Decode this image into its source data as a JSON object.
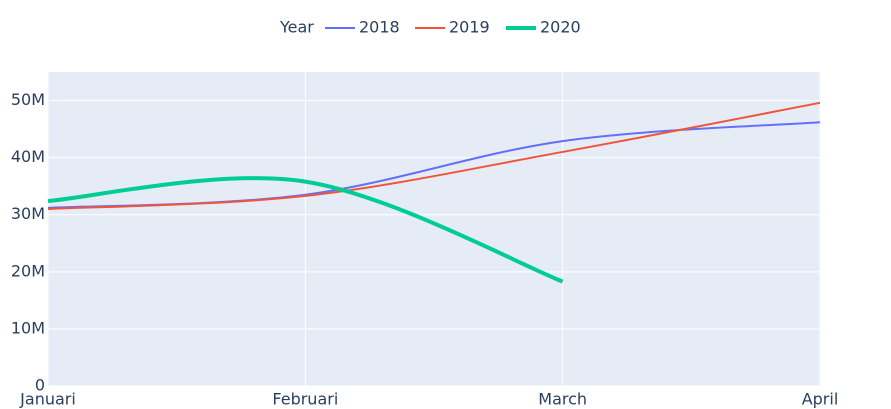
{
  "chart_data": {
    "type": "line",
    "legend_title": "Year",
    "categories": [
      "Januari",
      "Februari",
      "March",
      "April"
    ],
    "series": [
      {
        "name": "2018",
        "color": "#636efa",
        "width": 2,
        "values": [
          31200000,
          33500000,
          42900000,
          46200000
        ]
      },
      {
        "name": "2019",
        "color": "#ef553b",
        "width": 2,
        "values": [
          31000000,
          33300000,
          41000000,
          49600000
        ]
      },
      {
        "name": "2020",
        "color": "#00cc96",
        "width": 4,
        "values": [
          32400000,
          35800000,
          18300000,
          null
        ]
      }
    ],
    "ylim": [
      0,
      55000000
    ],
    "yticks": [
      0,
      {
        "value": 10000000,
        "label": "10M"
      },
      {
        "value": 20000000,
        "label": "20M"
      },
      {
        "value": 30000000,
        "label": "30M"
      },
      {
        "value": 40000000,
        "label": "40M"
      },
      {
        "value": 50000000,
        "label": "50M"
      }
    ],
    "grid": true,
    "smooth": true,
    "legend_position": "top"
  }
}
